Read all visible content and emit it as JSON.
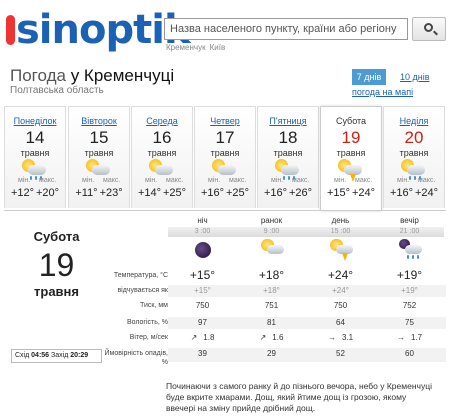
{
  "header": {
    "logo": "sinoptik",
    "search_placeholder": "Назва населеного пункту, країни або регіону",
    "hints": [
      "Кременчук",
      "Київ"
    ]
  },
  "title": {
    "prefix": "Погода",
    "city": "у Кременчуці"
  },
  "region": "Полтавська область",
  "tabs": {
    "seven": "7 днів",
    "ten": "10 днів",
    "map": "погода на мапі"
  },
  "days": [
    {
      "name": "Понеділок",
      "num": "14",
      "month": "травня",
      "min_label": "мін.",
      "max_label": "макс.",
      "min": "+12°",
      "max": "+20°",
      "icon": "cloud-rain-sun-icon",
      "red": false,
      "active": false
    },
    {
      "name": "Вівторок",
      "num": "15",
      "month": "травня",
      "min_label": "мін.",
      "max_label": "макс.",
      "min": "+11°",
      "max": "+23°",
      "icon": "sun-cloud-icon",
      "red": false,
      "active": false
    },
    {
      "name": "Середа",
      "num": "16",
      "month": "травня",
      "min_label": "мін.",
      "max_label": "макс.",
      "min": "+14°",
      "max": "+25°",
      "icon": "sun-cloud-icon",
      "red": false,
      "active": false
    },
    {
      "name": "Четвер",
      "num": "17",
      "month": "травня",
      "min_label": "мін.",
      "max_label": "макс.",
      "min": "+16°",
      "max": "+25°",
      "icon": "sun-cloud-icon",
      "red": false,
      "active": false
    },
    {
      "name": "П'ятниця",
      "num": "18",
      "month": "травня",
      "min_label": "мін.",
      "max_label": "макс.",
      "min": "+16°",
      "max": "+26°",
      "icon": "cloud-rain-sun-icon",
      "red": false,
      "active": false
    },
    {
      "name": "Субота",
      "num": "19",
      "month": "травня",
      "min_label": "мін.",
      "max_label": "макс.",
      "min": "+15°",
      "max": "+24°",
      "icon": "thunder-sun-icon",
      "red": true,
      "active": true
    },
    {
      "name": "Неділя",
      "num": "20",
      "month": "травня",
      "min_label": "мін.",
      "max_label": "макс.",
      "min": "+16°",
      "max": "+24°",
      "icon": "cloud-rain-sun-icon",
      "red": true,
      "active": false
    }
  ],
  "selected": {
    "day": "Субота",
    "num": "19",
    "month": "травня"
  },
  "sun": {
    "rise_label": "Схід",
    "rise": "04:56",
    "set_label": "Захід",
    "set": "20:29"
  },
  "labels": [
    "Температура, °С",
    "відчувається як",
    "Тиск, мм",
    "Вологість, %",
    "Вітер, м/сек",
    "Ймовірність опадів, %"
  ],
  "periods": [
    {
      "name": "ніч",
      "time": "3 :00",
      "icon": "moon-icon",
      "temp": "+15°",
      "feel": "+15°",
      "pressure": "750",
      "humidity": "97",
      "wind_dir": "↗",
      "wind": "1.8",
      "precip": "39"
    },
    {
      "name": "ранок",
      "time": "9 :00",
      "icon": "sun-cloud-icon",
      "temp": "+18°",
      "feel": "+18°",
      "pressure": "751",
      "humidity": "81",
      "wind_dir": "↗",
      "wind": "1.6",
      "precip": "29"
    },
    {
      "name": "день",
      "time": "15 :00",
      "icon": "thunder-sun-icon",
      "temp": "+24°",
      "feel": "+24°",
      "pressure": "750",
      "humidity": "64",
      "wind_dir": "→",
      "wind": "3.1",
      "precip": "52"
    },
    {
      "name": "вечір",
      "time": "21 :00",
      "icon": "cloud-rain-moon-icon",
      "temp": "+19°",
      "feel": "+19°",
      "pressure": "752",
      "humidity": "75",
      "wind_dir": "→",
      "wind": "1.7",
      "precip": "60"
    }
  ],
  "description": "Починаючи з самого ранку й до пізнього вечора, небо у Кременчуці буде вкрите хмарами. Дощ, який йтиме дощ із грозою, якому ввечері на зміну прийде дрібний дощ.",
  "colors": {
    "brand": "#1b62b5",
    "weekend": "#c21",
    "tab_active": "#4e9bd4"
  }
}
